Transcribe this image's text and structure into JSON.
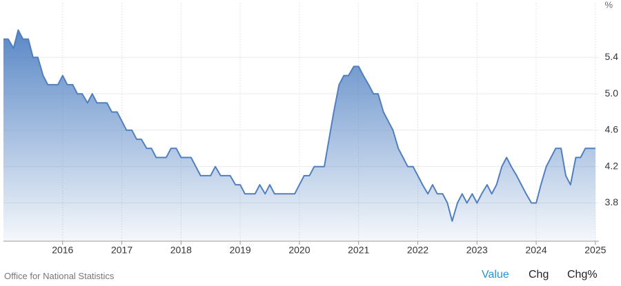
{
  "chart_data": {
    "type": "area",
    "unit": "%",
    "source": "Office for National Statistics",
    "tabs": [
      "Value",
      "Chg",
      "Chg%"
    ],
    "color": "#4f7fbf",
    "grid": true,
    "xlim": [
      2015,
      2025.06
    ],
    "ylim": [
      3.38,
      6.0
    ],
    "xticks": [
      2016,
      2017,
      2018,
      2019,
      2020,
      2021,
      2022,
      2023,
      2024,
      2025
    ],
    "yticks": [
      3.8,
      4.2,
      4.6,
      {
        "value": 5,
        "label": "5.0"
      },
      5.4
    ],
    "x": [
      2015,
      2015.08,
      2015.17,
      2015.25,
      2015.33,
      2015.42,
      2015.5,
      2015.58,
      2015.67,
      2015.75,
      2015.83,
      2015.92,
      2016,
      2016.08,
      2016.17,
      2016.25,
      2016.33,
      2016.42,
      2016.5,
      2016.58,
      2016.67,
      2016.75,
      2016.83,
      2016.92,
      2017,
      2017.08,
      2017.17,
      2017.25,
      2017.33,
      2017.42,
      2017.5,
      2017.58,
      2017.67,
      2017.75,
      2017.83,
      2017.92,
      2018,
      2018.08,
      2018.17,
      2018.25,
      2018.33,
      2018.42,
      2018.5,
      2018.58,
      2018.67,
      2018.75,
      2018.83,
      2018.92,
      2019,
      2019.08,
      2019.17,
      2019.25,
      2019.33,
      2019.42,
      2019.5,
      2019.58,
      2019.67,
      2019.75,
      2019.83,
      2019.92,
      2020,
      2020.08,
      2020.17,
      2020.25,
      2020.33,
      2020.42,
      2020.5,
      2020.58,
      2020.67,
      2020.75,
      2020.83,
      2020.92,
      2021,
      2021.08,
      2021.17,
      2021.25,
      2021.33,
      2021.42,
      2021.5,
      2021.58,
      2021.67,
      2021.75,
      2021.83,
      2021.92,
      2022,
      2022.08,
      2022.17,
      2022.25,
      2022.33,
      2022.42,
      2022.5,
      2022.58,
      2022.67,
      2022.75,
      2022.83,
      2022.92,
      2023,
      2023.08,
      2023.17,
      2023.25,
      2023.33,
      2023.42,
      2023.5,
      2023.58,
      2023.67,
      2023.75,
      2023.83,
      2023.92,
      2024,
      2024.08,
      2024.17,
      2024.25,
      2024.33,
      2024.42,
      2024.5,
      2024.58,
      2024.67,
      2024.75,
      2024.83,
      2024.92,
      2025
    ],
    "values": [
      5.6,
      5.6,
      5.5,
      5.7,
      5.6,
      5.6,
      5.4,
      5.4,
      5.2,
      5.1,
      5.1,
      5.1,
      5.2,
      5.1,
      5.1,
      5.0,
      5.0,
      4.9,
      5.0,
      4.9,
      4.9,
      4.9,
      4.8,
      4.8,
      4.7,
      4.6,
      4.6,
      4.5,
      4.5,
      4.4,
      4.4,
      4.3,
      4.3,
      4.3,
      4.4,
      4.4,
      4.3,
      4.3,
      4.3,
      4.2,
      4.1,
      4.1,
      4.1,
      4.2,
      4.1,
      4.1,
      4.1,
      4.0,
      4.0,
      3.9,
      3.9,
      3.9,
      4.0,
      3.9,
      4.0,
      3.9,
      3.9,
      3.9,
      3.9,
      3.9,
      4.0,
      4.1,
      4.1,
      4.2,
      4.2,
      4.2,
      4.5,
      4.8,
      5.1,
      5.2,
      5.2,
      5.3,
      5.3,
      5.2,
      5.1,
      5.0,
      5.0,
      4.8,
      4.7,
      4.6,
      4.4,
      4.3,
      4.2,
      4.2,
      4.1,
      4.0,
      3.9,
      4.0,
      3.9,
      3.9,
      3.8,
      3.6,
      3.8,
      3.9,
      3.8,
      3.9,
      3.8,
      3.9,
      4.0,
      3.9,
      4.0,
      4.2,
      4.3,
      4.2,
      4.1,
      4.0,
      3.9,
      3.8,
      3.8,
      4.0,
      4.2,
      4.3,
      4.4,
      4.4,
      4.1,
      4.0,
      4.3,
      4.3,
      4.4,
      4.4,
      4.4
    ]
  }
}
